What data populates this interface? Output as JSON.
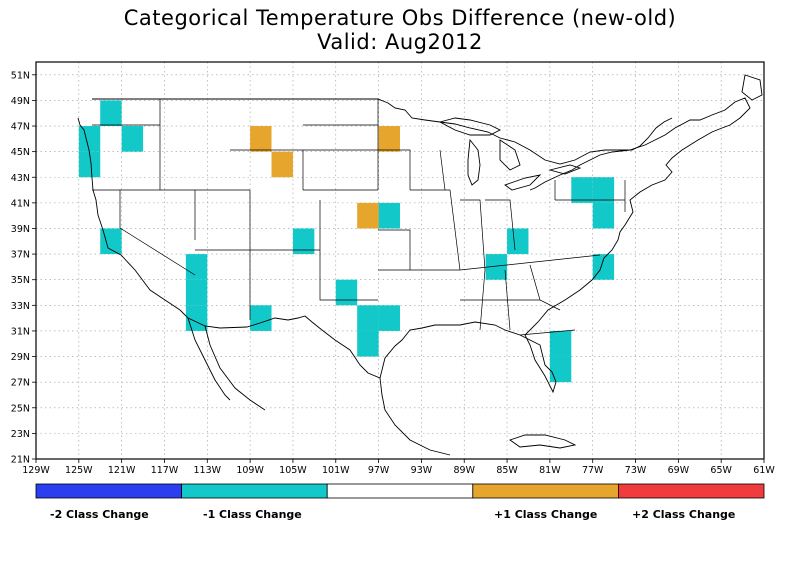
{
  "title": {
    "line1": "Categorical Temperature Obs Difference (new-old)",
    "line2": "Valid: Aug2012"
  },
  "map": {
    "lon_ticks": [
      "129W",
      "125W",
      "121W",
      "117W",
      "113W",
      "109W",
      "105W",
      "101W",
      "97W",
      "93W",
      "89W",
      "85W",
      "81W",
      "77W",
      "73W",
      "69W",
      "65W",
      "61W"
    ],
    "lat_ticks": [
      "51N",
      "49N",
      "47N",
      "45N",
      "43N",
      "41N",
      "39N",
      "37N",
      "35N",
      "33N",
      "31N",
      "29N",
      "27N",
      "25N",
      "23N",
      "21N"
    ],
    "colors": {
      "minus2": "#2b3ff0",
      "minus1": "#12c8c8",
      "zero": "#ffffff",
      "plus1": "#e6a52c",
      "plus2": "#f03c3c"
    },
    "cells_minus1": [
      {
        "lon": -122.0,
        "lat": 48.0
      },
      {
        "lon": -124.0,
        "lat": 46.0
      },
      {
        "lon": -124.0,
        "lat": 44.0
      },
      {
        "lon": -120.0,
        "lat": 46.0
      },
      {
        "lon": -122.0,
        "lat": 38.0
      },
      {
        "lon": -114.0,
        "lat": 36.0
      },
      {
        "lon": -114.0,
        "lat": 34.0
      },
      {
        "lon": -114.0,
        "lat": 32.0
      },
      {
        "lon": -108.0,
        "lat": 32.0
      },
      {
        "lon": -104.0,
        "lat": 38.0
      },
      {
        "lon": -100.0,
        "lat": 34.0
      },
      {
        "lon": -98.0,
        "lat": 32.0
      },
      {
        "lon": -96.0,
        "lat": 32.0
      },
      {
        "lon": -98.0,
        "lat": 30.0
      },
      {
        "lon": -96.0,
        "lat": 40.0
      },
      {
        "lon": -86.0,
        "lat": 36.0
      },
      {
        "lon": -84.0,
        "lat": 38.0
      },
      {
        "lon": -80.0,
        "lat": 30.0
      },
      {
        "lon": -80.0,
        "lat": 28.0
      },
      {
        "lon": -78.0,
        "lat": 42.0
      },
      {
        "lon": -76.0,
        "lat": 42.0
      },
      {
        "lon": -76.0,
        "lat": 40.0
      },
      {
        "lon": -76.0,
        "lat": 36.0
      }
    ],
    "cells_plus1": [
      {
        "lon": -108.0,
        "lat": 46.0
      },
      {
        "lon": -106.0,
        "lat": 44.0
      },
      {
        "lon": -96.0,
        "lat": 46.0
      },
      {
        "lon": -98.0,
        "lat": 40.0
      }
    ]
  },
  "legend": {
    "labels": [
      "-2 Class Change",
      "-1 Class Change",
      "+1 Class Change",
      "+2 Class Change"
    ]
  }
}
